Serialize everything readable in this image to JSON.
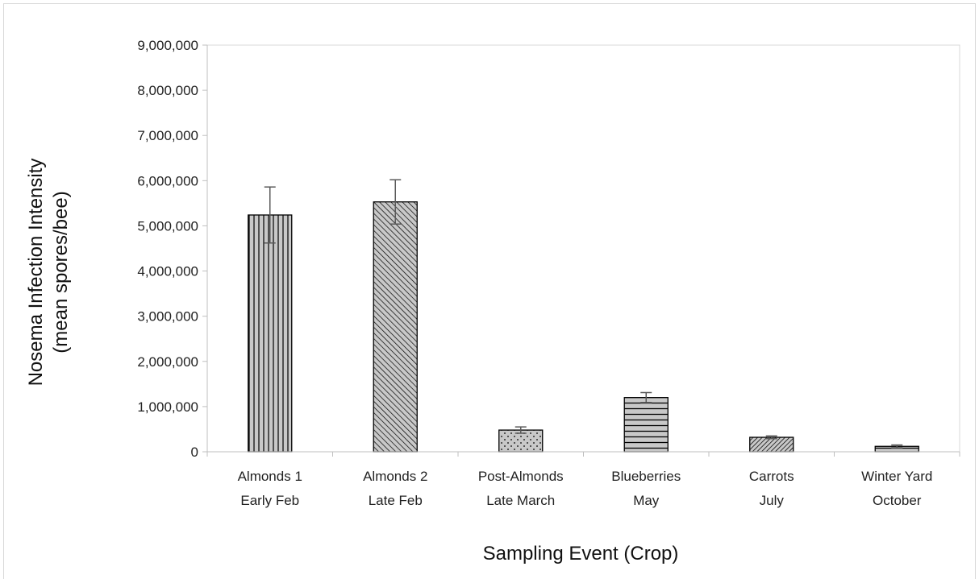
{
  "chart_data": {
    "type": "bar",
    "title": "",
    "xlabel": "Sampling Event (Crop)",
    "ylabel_lines": [
      "Nosema Infection Intensity",
      "(mean spores/bee)"
    ],
    "ylim": [
      0,
      9000000
    ],
    "yticks": [
      0,
      1000000,
      2000000,
      3000000,
      4000000,
      5000000,
      6000000,
      7000000,
      8000000,
      9000000
    ],
    "ytick_labels": [
      "0",
      "1,000,000",
      "2,000,000",
      "3,000,000",
      "4,000,000",
      "5,000,000",
      "6,000,000",
      "7,000,000",
      "8,000,000",
      "9,000,000"
    ],
    "grid": false,
    "categories": [
      {
        "line1": "Almonds 1",
        "line2": "Early Feb"
      },
      {
        "line1": "Almonds 2",
        "line2": "Late Feb"
      },
      {
        "line1": "Post-Almonds",
        "line2": "Late March"
      },
      {
        "line1": "Blueberries",
        "line2": "May"
      },
      {
        "line1": "Carrots",
        "line2": "July"
      },
      {
        "line1": "Winter Yard",
        "line2": "October"
      }
    ],
    "values": [
      5240000,
      5530000,
      480000,
      1200000,
      320000,
      120000
    ],
    "errors": [
      620000,
      490000,
      70000,
      110000,
      30000,
      30000
    ],
    "patterns": [
      "vertical-lines",
      "diagonal-lines",
      "dots",
      "horizontal-lines",
      "dense-diagonal",
      "horizontal-lines"
    ],
    "bar_fill": "#c8c8c8",
    "bar_stroke": "#000000",
    "error_color": "#595959"
  }
}
